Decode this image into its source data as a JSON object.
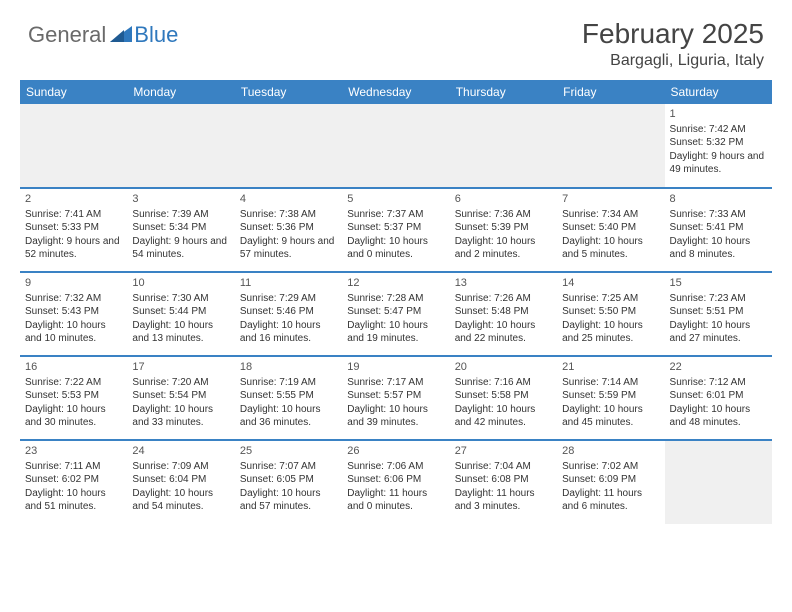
{
  "logo": {
    "text1": "General",
    "text2": "Blue"
  },
  "title": "February 2025",
  "location": "Bargagli, Liguria, Italy",
  "colors": {
    "header_bg": "#3a82c4",
    "header_text": "#ffffff",
    "blank_bg": "#f0f0f0",
    "border": "#3a82c4",
    "text": "#333333",
    "logo_gray": "#6a6a6a",
    "logo_blue": "#2f78bd"
  },
  "typography": {
    "title_fontsize": 28,
    "location_fontsize": 16,
    "dayheader_fontsize": 12,
    "cell_fontsize": 10
  },
  "day_headers": [
    "Sunday",
    "Monday",
    "Tuesday",
    "Wednesday",
    "Thursday",
    "Friday",
    "Saturday"
  ],
  "weeks": [
    [
      null,
      null,
      null,
      null,
      null,
      null,
      {
        "n": "1",
        "sunrise": "7:42 AM",
        "sunset": "5:32 PM",
        "daylight": "9 hours and 49 minutes."
      }
    ],
    [
      {
        "n": "2",
        "sunrise": "7:41 AM",
        "sunset": "5:33 PM",
        "daylight": "9 hours and 52 minutes."
      },
      {
        "n": "3",
        "sunrise": "7:39 AM",
        "sunset": "5:34 PM",
        "daylight": "9 hours and 54 minutes."
      },
      {
        "n": "4",
        "sunrise": "7:38 AM",
        "sunset": "5:36 PM",
        "daylight": "9 hours and 57 minutes."
      },
      {
        "n": "5",
        "sunrise": "7:37 AM",
        "sunset": "5:37 PM",
        "daylight": "10 hours and 0 minutes."
      },
      {
        "n": "6",
        "sunrise": "7:36 AM",
        "sunset": "5:39 PM",
        "daylight": "10 hours and 2 minutes."
      },
      {
        "n": "7",
        "sunrise": "7:34 AM",
        "sunset": "5:40 PM",
        "daylight": "10 hours and 5 minutes."
      },
      {
        "n": "8",
        "sunrise": "7:33 AM",
        "sunset": "5:41 PM",
        "daylight": "10 hours and 8 minutes."
      }
    ],
    [
      {
        "n": "9",
        "sunrise": "7:32 AM",
        "sunset": "5:43 PM",
        "daylight": "10 hours and 10 minutes."
      },
      {
        "n": "10",
        "sunrise": "7:30 AM",
        "sunset": "5:44 PM",
        "daylight": "10 hours and 13 minutes."
      },
      {
        "n": "11",
        "sunrise": "7:29 AM",
        "sunset": "5:46 PM",
        "daylight": "10 hours and 16 minutes."
      },
      {
        "n": "12",
        "sunrise": "7:28 AM",
        "sunset": "5:47 PM",
        "daylight": "10 hours and 19 minutes."
      },
      {
        "n": "13",
        "sunrise": "7:26 AM",
        "sunset": "5:48 PM",
        "daylight": "10 hours and 22 minutes."
      },
      {
        "n": "14",
        "sunrise": "7:25 AM",
        "sunset": "5:50 PM",
        "daylight": "10 hours and 25 minutes."
      },
      {
        "n": "15",
        "sunrise": "7:23 AM",
        "sunset": "5:51 PM",
        "daylight": "10 hours and 27 minutes."
      }
    ],
    [
      {
        "n": "16",
        "sunrise": "7:22 AM",
        "sunset": "5:53 PM",
        "daylight": "10 hours and 30 minutes."
      },
      {
        "n": "17",
        "sunrise": "7:20 AM",
        "sunset": "5:54 PM",
        "daylight": "10 hours and 33 minutes."
      },
      {
        "n": "18",
        "sunrise": "7:19 AM",
        "sunset": "5:55 PM",
        "daylight": "10 hours and 36 minutes."
      },
      {
        "n": "19",
        "sunrise": "7:17 AM",
        "sunset": "5:57 PM",
        "daylight": "10 hours and 39 minutes."
      },
      {
        "n": "20",
        "sunrise": "7:16 AM",
        "sunset": "5:58 PM",
        "daylight": "10 hours and 42 minutes."
      },
      {
        "n": "21",
        "sunrise": "7:14 AM",
        "sunset": "5:59 PM",
        "daylight": "10 hours and 45 minutes."
      },
      {
        "n": "22",
        "sunrise": "7:12 AM",
        "sunset": "6:01 PM",
        "daylight": "10 hours and 48 minutes."
      }
    ],
    [
      {
        "n": "23",
        "sunrise": "7:11 AM",
        "sunset": "6:02 PM",
        "daylight": "10 hours and 51 minutes."
      },
      {
        "n": "24",
        "sunrise": "7:09 AM",
        "sunset": "6:04 PM",
        "daylight": "10 hours and 54 minutes."
      },
      {
        "n": "25",
        "sunrise": "7:07 AM",
        "sunset": "6:05 PM",
        "daylight": "10 hours and 57 minutes."
      },
      {
        "n": "26",
        "sunrise": "7:06 AM",
        "sunset": "6:06 PM",
        "daylight": "11 hours and 0 minutes."
      },
      {
        "n": "27",
        "sunrise": "7:04 AM",
        "sunset": "6:08 PM",
        "daylight": "11 hours and 3 minutes."
      },
      {
        "n": "28",
        "sunrise": "7:02 AM",
        "sunset": "6:09 PM",
        "daylight": "11 hours and 6 minutes."
      },
      null
    ]
  ],
  "labels": {
    "sunrise": "Sunrise:",
    "sunset": "Sunset:",
    "daylight": "Daylight:"
  }
}
